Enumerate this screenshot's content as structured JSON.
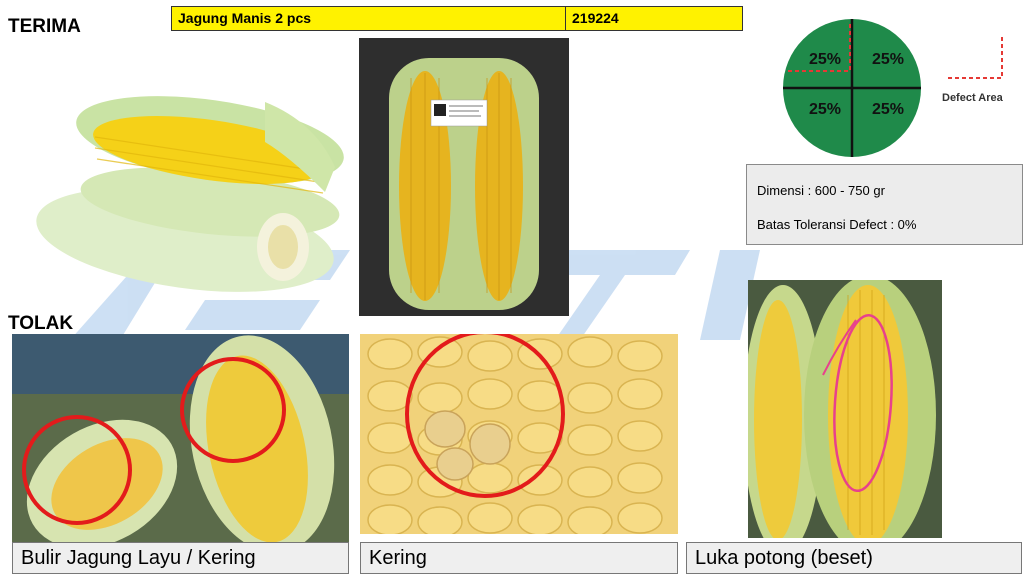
{
  "headings": {
    "accept": "TERIMA",
    "reject": "TOLAK"
  },
  "product": {
    "name": "Jagung Manis 2 pcs",
    "code": "219224"
  },
  "defect_diagram": {
    "quadrants": [
      "25%",
      "25%",
      "25%",
      "25%"
    ],
    "legend_label": "Defect Area",
    "circle_color": "#1f8a4a",
    "marker_color": "#e53935"
  },
  "spec": {
    "dimension": "Dimensi : 600 - 750 gr",
    "tolerance": "Batas Toleransi Defect : 0%"
  },
  "reject_items": [
    {
      "label": "Bulir Jagung Layu / Kering"
    },
    {
      "label": "Kering"
    },
    {
      "label": "Luka potong (beset)"
    }
  ],
  "colors": {
    "header_fill": "#fff200",
    "highlight_circle": "#e31b1b",
    "cut_mark": "#e8418c",
    "watermark": "#bcd4ee"
  }
}
